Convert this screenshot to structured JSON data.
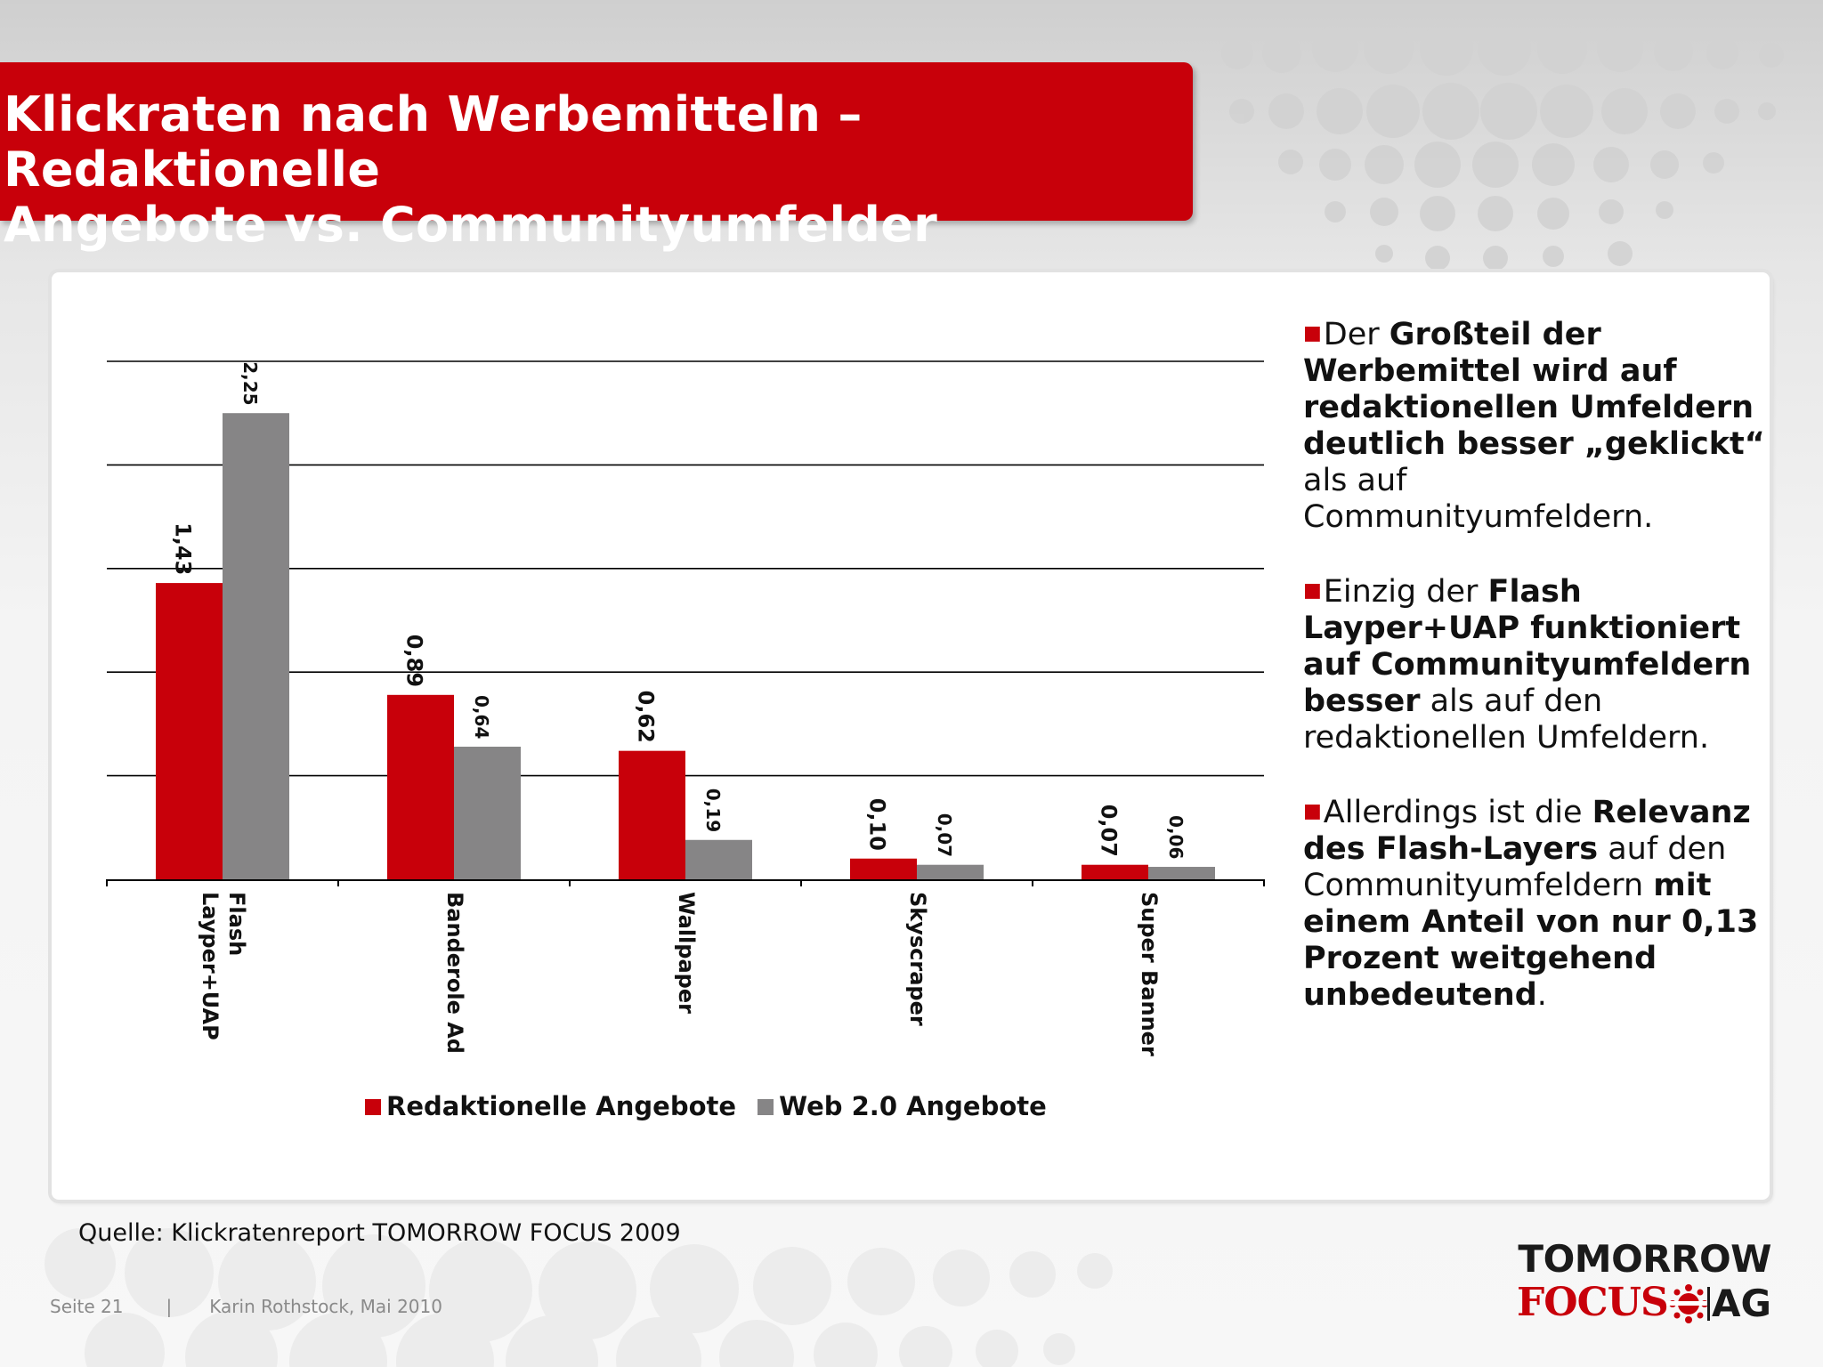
{
  "slide": {
    "title_line1": "Klickraten nach Werbemitteln – Redaktionelle",
    "title_line2": "Angebote vs. Communityumfelder",
    "source": "Quelle: Klickratenreport TOMORROW FOCUS 2009",
    "footer_page": "Seite 21",
    "footer_sep": "|",
    "footer_author": "Karin Rothstock, Mai 2010",
    "logo_line1": "TOMORROW",
    "logo_line2a": "FOCUS",
    "logo_line2b": "AG"
  },
  "bullets": [
    [
      {
        "t": "Der ",
        "b": false
      },
      {
        "t": "Großteil der Werbemittel wird auf redaktionellen Umfeldern deutlich besser „geklickt“",
        "b": true
      },
      {
        "t": " als auf Communityumfeldern.",
        "b": false
      }
    ],
    [
      {
        "t": "Einzig der ",
        "b": false
      },
      {
        "t": "Flash Layper+UAP funktioniert auf Communityumfeldern besser",
        "b": true
      },
      {
        "t": " als auf den redaktionellen Umfeldern.",
        "b": false
      }
    ],
    [
      {
        "t": "Allerdings ist die ",
        "b": false
      },
      {
        "t": "Relevanz des Flash-Layers",
        "b": true
      },
      {
        "t": " auf den Communityumfeldern ",
        "b": false
      },
      {
        "t": "mit einem Anteil von nur 0,13 Prozent weitgehend unbedeutend",
        "b": true
      },
      {
        "t": ".",
        "b": false
      }
    ]
  ],
  "chart_data": {
    "type": "bar",
    "categories": [
      "Flash Layper+UAP",
      "Banderole Ad",
      "Wallpaper",
      "Skyscraper",
      "Super Banner"
    ],
    "category_lines": [
      [
        "Flash",
        "Layper+UAP"
      ],
      [
        "Banderole Ad"
      ],
      [
        "Wallpaper"
      ],
      [
        "Skyscraper"
      ],
      [
        "Super Banner"
      ]
    ],
    "series": [
      {
        "name": "Redaktionelle Angebote",
        "values": [
          1.43,
          0.89,
          0.62,
          0.1,
          0.07
        ],
        "labels": [
          "1,43",
          "0,89",
          "0,62",
          "0,10",
          "0,07"
        ],
        "color": "#c8000a"
      },
      {
        "name": "Web 2.0 Angebote",
        "values": [
          2.25,
          0.64,
          0.19,
          0.07,
          0.06
        ],
        "labels": [
          "2,25",
          "0,64",
          "0,19",
          "0,07",
          "0,06"
        ],
        "color": "#868586"
      }
    ],
    "ylim": [
      0,
      2.5
    ],
    "gridlines": [
      0.5,
      1.0,
      1.5,
      2.0,
      2.5
    ],
    "grid": true,
    "legend": "bottom",
    "xlabel": "",
    "ylabel": ""
  }
}
